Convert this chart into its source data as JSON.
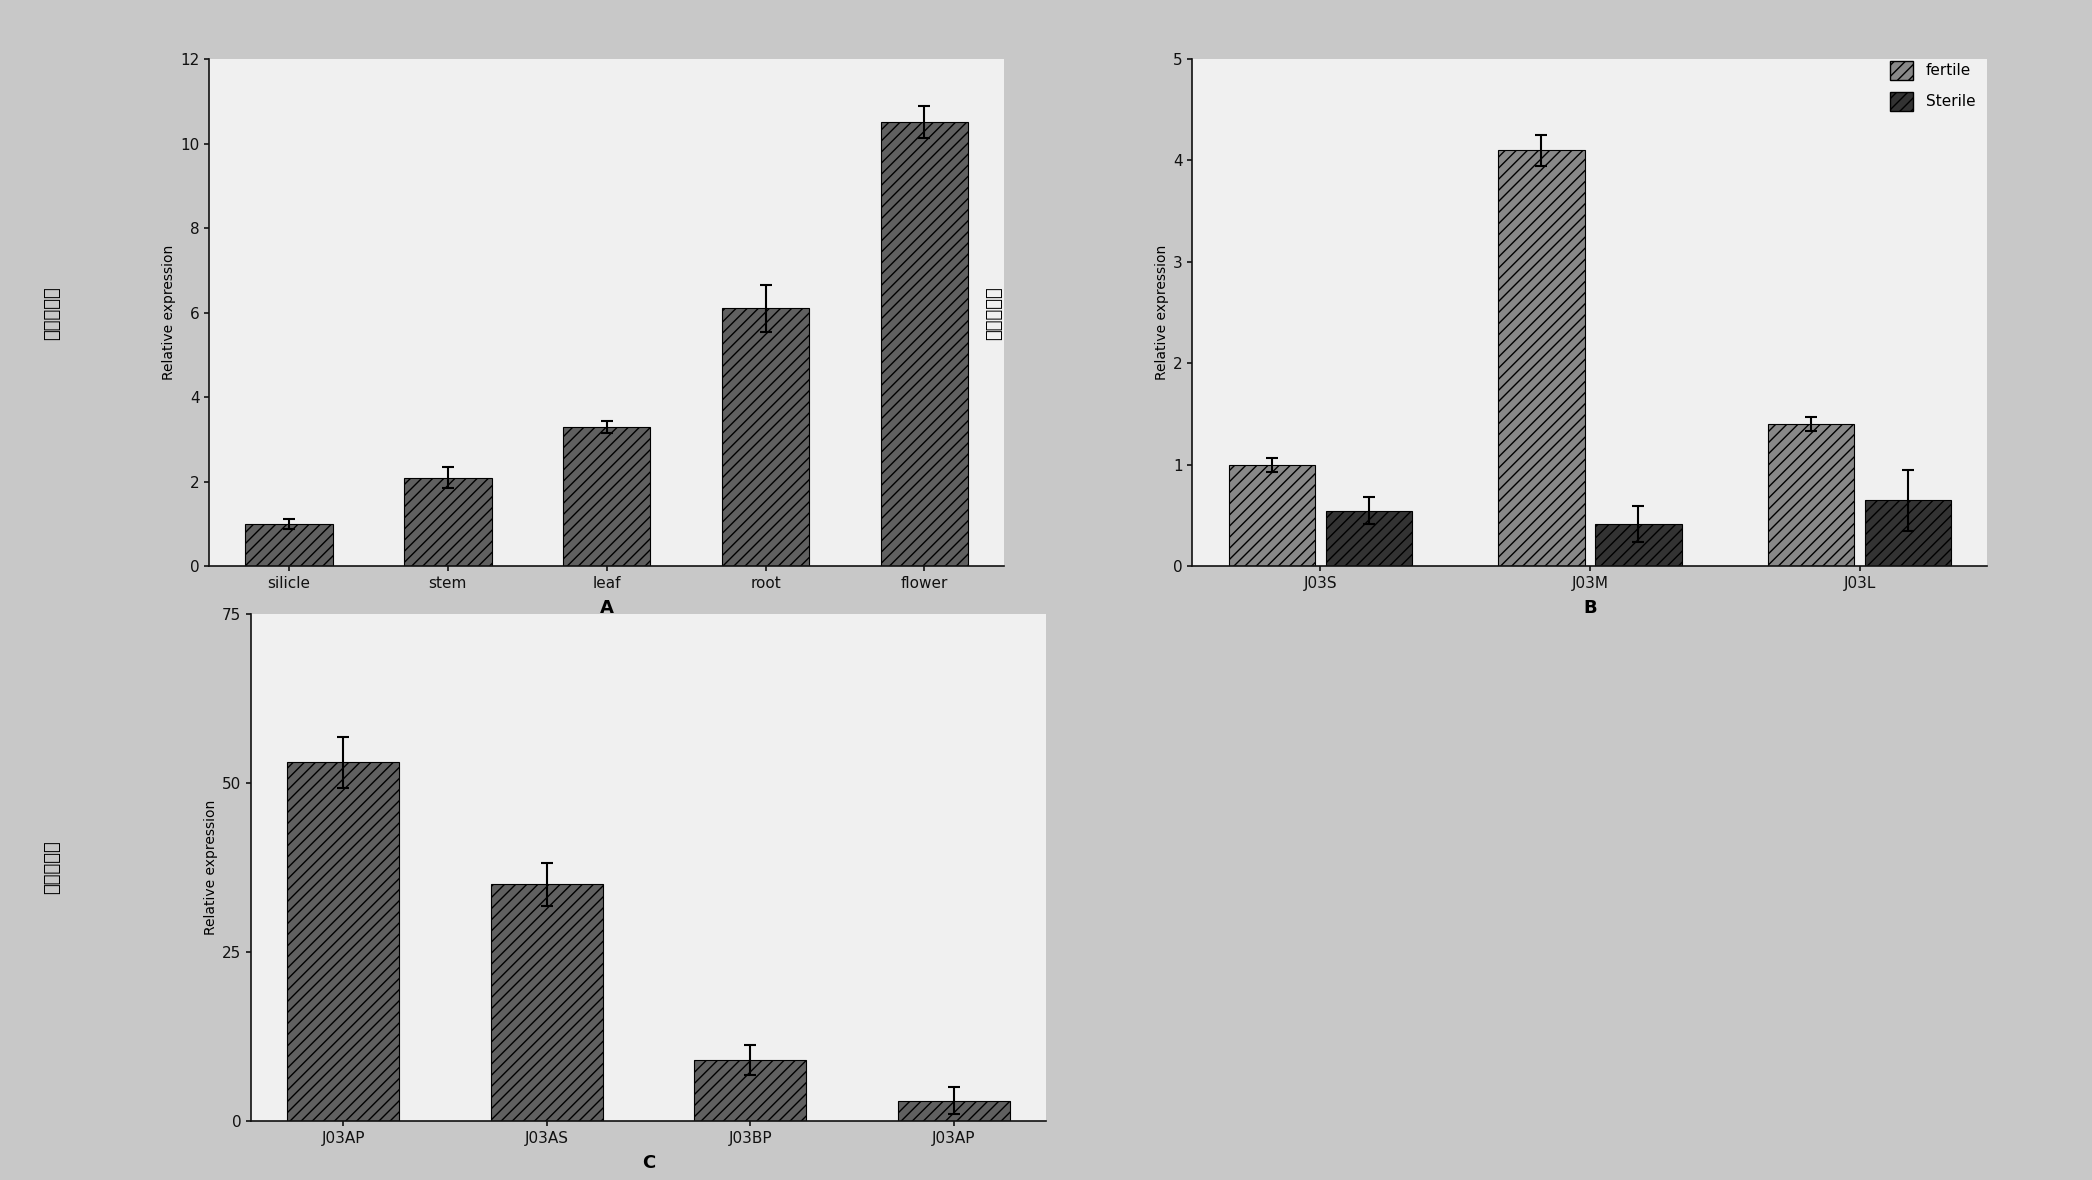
{
  "background_color": "#c8c8c8",
  "chart_bg": "#f0f0f0",
  "panel_A": {
    "categories": [
      "silicle",
      "stem",
      "leaf",
      "root",
      "flower"
    ],
    "values": [
      1.0,
      2.1,
      3.3,
      6.1,
      10.5
    ],
    "errors": [
      0.12,
      0.25,
      0.15,
      0.55,
      0.38
    ],
    "ylabel_cn": "相对表达量",
    "ylabel_en": "Relative expression",
    "xlabel": "A",
    "ylim": [
      0,
      12
    ],
    "yticks": [
      0,
      2,
      4,
      6,
      8,
      10,
      12
    ],
    "bar_color": "#606060",
    "bar_hatch": "///",
    "bar_width": 0.55
  },
  "panel_B": {
    "categories": [
      "J03S",
      "J03M",
      "J03L"
    ],
    "fertile_values": [
      1.0,
      4.1,
      1.4
    ],
    "fertile_errors": [
      0.07,
      0.15,
      0.07
    ],
    "sterile_values": [
      0.55,
      0.42,
      0.65
    ],
    "sterile_errors": [
      0.13,
      0.18,
      0.3
    ],
    "ylabel_cn": "相对表达量",
    "ylabel_en": "Relative expression",
    "xlabel": "B",
    "ylim": [
      0,
      5
    ],
    "yticks": [
      0,
      1,
      2,
      3,
      4,
      5
    ],
    "fertile_color": "#888888",
    "sterile_color": "#333333",
    "fertile_hatch": "///",
    "sterile_hatch": "///",
    "bar_width": 0.32,
    "legend_fertile": "fertile",
    "legend_sterile": "Sterile"
  },
  "panel_C": {
    "categories": [
      "J03AP",
      "J03AS",
      "J03BP",
      "J03AP"
    ],
    "values": [
      53.0,
      35.0,
      9.0,
      3.0
    ],
    "errors": [
      3.8,
      3.2,
      2.2,
      2.0
    ],
    "ylabel_cn": "相对表达量",
    "ylabel_en": "Relative expression",
    "xlabel": "C",
    "ylim": [
      0,
      75
    ],
    "yticks": [
      0,
      25,
      50,
      75
    ],
    "bar_color": "#606060",
    "bar_hatch": "///",
    "bar_width": 0.55
  }
}
